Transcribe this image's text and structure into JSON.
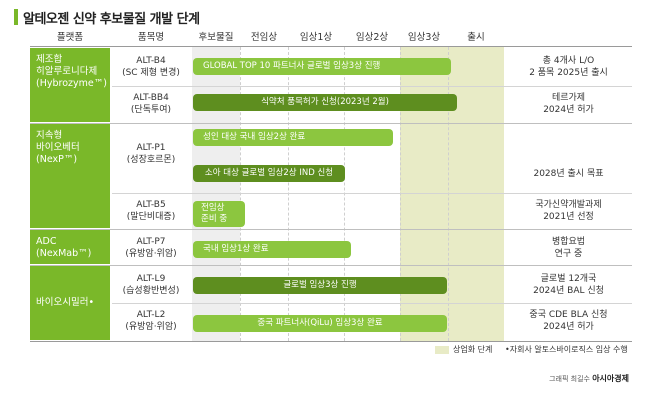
{
  "title": "알테오젠 신약 후보물질 개발 단계",
  "headers": {
    "platform": "플랫폼",
    "product": "품목명",
    "candidate": "후보물질",
    "preclinical": "전임상",
    "phase1": "임상1상",
    "phase2": "임상2상",
    "phase3": "임상3상",
    "launch": "출시"
  },
  "categories": {
    "hybrozyme": "제조합\n히알루로니다제\n(Hybrozyme™)",
    "nexp": "지속형\n바이오베터\n(NexP™)",
    "adc": "ADC\n(NexMab™)",
    "biosimilar": "바이오시밀러•"
  },
  "products": {
    "b4": "ALT-B4\n(SC 제형 변경)",
    "bb4": "ALT-BB4\n(단독투여)",
    "p1": "ALT-P1\n(성장호르몬)",
    "b5": "ALT-B5\n(말단비대증)",
    "p7": "ALT-P7\n(유방암·위암)",
    "l9": "ALT-L9\n(습성황반변성)",
    "l2": "ALT-L2\n(유방암·위암)"
  },
  "bars": {
    "b4": "GLOBAL TOP 10 파트너사 글로벌 임상3상 진행",
    "bb4": "식약처 품목허가 신청(2023년 2월)",
    "p1a": "성인 대상 국내 임상2상 완료",
    "p1b": "소아 대상 글로벌 임상2상 IND 신청",
    "b5": "전임상\n준비 중",
    "p7": "국내 임상1상 완료",
    "l9": "글로벌 임상3상 진행",
    "l2": "중국 파트너사(QiLu) 임상3상 완료"
  },
  "notes": {
    "b4": "총 4개사 L/O\n2 품목 2025년 출시",
    "bb4": "테르가제\n2024년 허가",
    "p1": "2028년 출시 목표",
    "b5": "국가신약개발과제\n2021년 선정",
    "p7": "병합요법\n연구 중",
    "l9": "글로벌 12개국\n2024년 BAL 신청",
    "l2": "중국 CDE BLA 신청\n2024년 허가"
  },
  "legend": {
    "commercial": "상업화 단계",
    "footnote": "•자회사 알토스바이로직스 임상 수행"
  },
  "credit": {
    "prefix": "그래픽 최길수",
    "brand": "아시아경제"
  },
  "colors": {
    "accent": "#7ab829",
    "bar_light": "#8cc63f",
    "bar_dark": "#5e8e1f",
    "commercial_band": "#e8ebc6"
  }
}
